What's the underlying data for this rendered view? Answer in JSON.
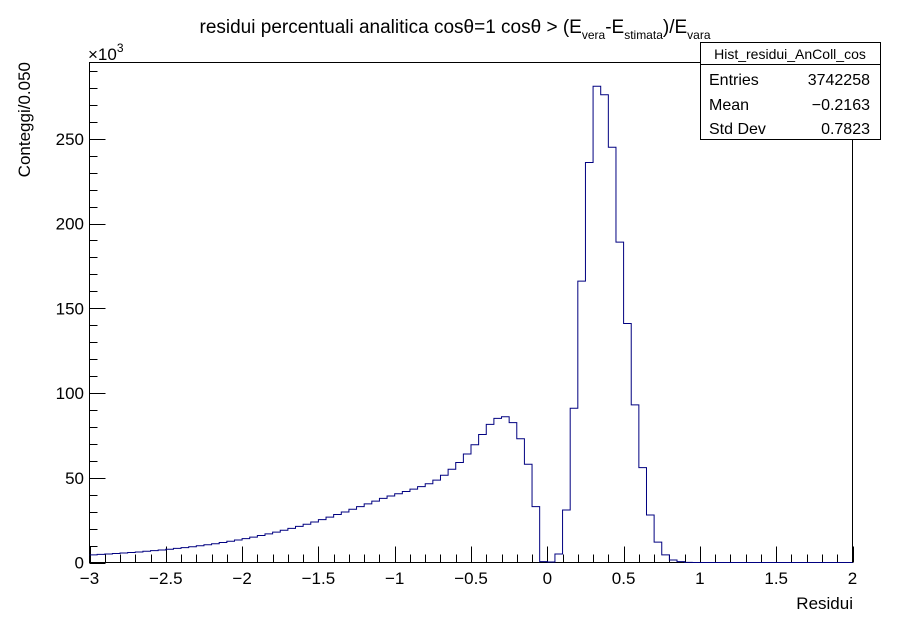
{
  "chart_data": {
    "type": "histogram",
    "title_parts": {
      "main": "residui percentuali analitica cosθ=1 cosθ > (E",
      "sub1": "vera",
      "mid": "-E",
      "sub2": "stimata",
      "close": ")/E",
      "sub3": "vara"
    },
    "xlabel": "Residui",
    "ylabel": "Conteggi/0.050",
    "y_multiplier": "×10",
    "y_multiplier_exp": "3",
    "xlim": [
      -3,
      2
    ],
    "ylim": [
      0,
      295
    ],
    "x_ticks": [
      -3,
      -2.5,
      -2,
      -1.5,
      -1,
      -0.5,
      0,
      0.5,
      1,
      1.5,
      2
    ],
    "x_tick_labels": [
      "−3",
      "−2.5",
      "−2",
      "−1.5",
      "−1",
      "−0.5",
      "0",
      "0.5",
      "1",
      "1.5",
      "2"
    ],
    "y_ticks": [
      0,
      50,
      100,
      150,
      200,
      250
    ],
    "y_tick_labels": [
      "0",
      "50",
      "100",
      "150",
      "200",
      "250"
    ],
    "bin_width": 0.05,
    "line_color": "#000080",
    "bins_x_low": [
      -3.0,
      -2.95,
      -2.9,
      -2.85,
      -2.8,
      -2.75,
      -2.7,
      -2.65,
      -2.6,
      -2.55,
      -2.5,
      -2.45,
      -2.4,
      -2.35,
      -2.3,
      -2.25,
      -2.2,
      -2.15,
      -2.1,
      -2.05,
      -2.0,
      -1.95,
      -1.9,
      -1.85,
      -1.8,
      -1.75,
      -1.7,
      -1.65,
      -1.6,
      -1.55,
      -1.5,
      -1.45,
      -1.4,
      -1.35,
      -1.3,
      -1.25,
      -1.2,
      -1.15,
      -1.1,
      -1.05,
      -1.0,
      -0.95,
      -0.9,
      -0.85,
      -0.8,
      -0.75,
      -0.7,
      -0.65,
      -0.6,
      -0.55,
      -0.5,
      -0.45,
      -0.4,
      -0.35,
      -0.3,
      -0.25,
      -0.2,
      -0.15,
      -0.1,
      -0.05,
      0.0,
      0.05,
      0.1,
      0.15,
      0.2,
      0.25,
      0.3,
      0.35,
      0.4,
      0.45,
      0.5,
      0.55,
      0.6,
      0.65,
      0.7,
      0.75,
      0.8,
      0.85,
      0.9,
      0.95,
      1.0,
      1.05,
      1.1,
      1.15,
      1.2,
      1.25,
      1.3,
      1.35,
      1.4,
      1.45,
      1.5,
      1.55,
      1.6,
      1.65,
      1.7,
      1.75,
      1.8,
      1.85,
      1.9,
      1.95
    ],
    "values": [
      4.5,
      4.8,
      5.0,
      5.3,
      5.6,
      5.9,
      6.2,
      6.6,
      7.0,
      7.4,
      7.8,
      8.3,
      8.8,
      9.3,
      9.9,
      10.5,
      11.1,
      11.8,
      12.5,
      13.3,
      14.1,
      15.0,
      15.9,
      16.9,
      17.9,
      19.0,
      20.1,
      21.3,
      22.6,
      23.9,
      25.3,
      26.8,
      28.3,
      29.8,
      31.4,
      33.0,
      34.6,
      36.2,
      37.8,
      39.2,
      40.6,
      41.9,
      43.3,
      44.8,
      46.5,
      48.6,
      51.5,
      55.0,
      59.0,
      64.0,
      69.5,
      75.5,
      81.5,
      85.0,
      86.0,
      82.5,
      73.0,
      58.0,
      33.0,
      0.5,
      0.3,
      5.0,
      31.0,
      91.0,
      166.0,
      236.0,
      281.0,
      276.0,
      245.0,
      189.0,
      141.0,
      93.0,
      56.0,
      28.0,
      12.0,
      4.5,
      1.5,
      0.5,
      0.1,
      0,
      0,
      0,
      0,
      0,
      0,
      0,
      0,
      0,
      0,
      0,
      0,
      0,
      0,
      0,
      0,
      0,
      0,
      0,
      0,
      0
    ],
    "stats": {
      "name": "Hist_residui_AnColl_cos",
      "rows": [
        {
          "label": "Entries",
          "value": "3742258"
        },
        {
          "label": "Mean",
          "value": "−0.2163"
        },
        {
          "label": "Std Dev",
          "value": "0.7823"
        }
      ]
    }
  }
}
